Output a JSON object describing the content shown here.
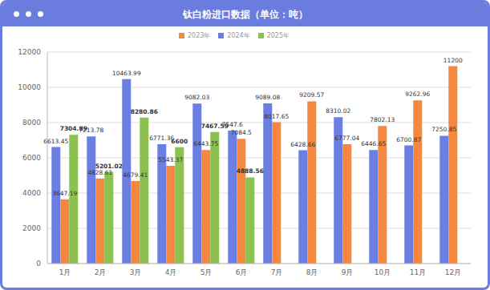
{
  "chart_data": {
    "type": "bar",
    "title": "钛白粉进口数据（单位：吨）",
    "categories": [
      "1月",
      "2月",
      "3月",
      "4月",
      "5月",
      "6月",
      "7月",
      "8月",
      "9月",
      "10月",
      "11月",
      "12月"
    ],
    "series": [
      {
        "name": "2024年",
        "color": "#6b7fe3",
        "values": [
          6613.45,
          7213.78,
          10463.99,
          6771.36,
          9082.03,
          7547.6,
          9089.08,
          6428.66,
          8310.02,
          6446.65,
          6700.87,
          7250.85
        ]
      },
      {
        "name": "2023年",
        "color": "#f5883e",
        "values": [
          3647.19,
          4828.61,
          4679.41,
          5543.37,
          6443.75,
          7084.5,
          8017.65,
          9209.57,
          6777.04,
          7802.13,
          9262.96,
          11200
        ]
      },
      {
        "name": "2025年",
        "color": "#8cc152",
        "values": [
          7304.89,
          5201.02,
          8280.86,
          6600,
          7467.59,
          4888.56,
          null,
          null,
          null,
          null,
          null,
          null
        ]
      }
    ],
    "ylim": [
      0,
      12000
    ],
    "yticks": [
      0,
      2000,
      4000,
      6000,
      8000,
      10000,
      12000
    ],
    "grid": true,
    "data_labels": true,
    "legend": "top"
  }
}
